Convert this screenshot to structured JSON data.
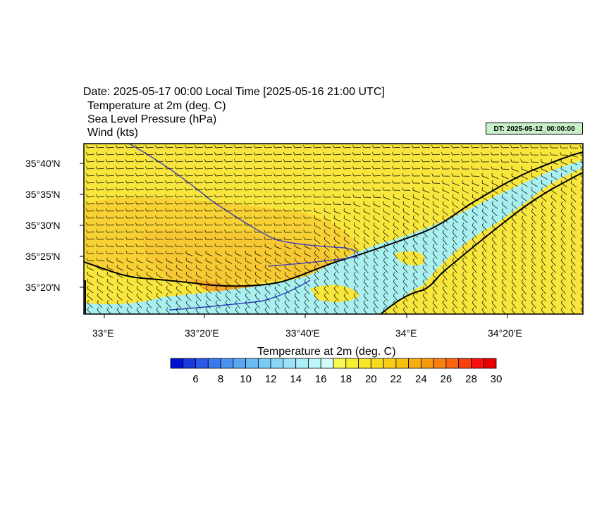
{
  "header": {
    "date_line": "Date: 2025-05-17  00:00 Local Time [2025-05-16  21:00 UTC]",
    "fields": [
      "Temperature at 2m   (deg. C)",
      "Sea Level Pressure   (hPa)",
      "Wind   (kts)"
    ],
    "dt_badge": "DT: 2025-05-12_00:00:00"
  },
  "map": {
    "region": "Eastern Mediterranean coastline",
    "lat_labels": [
      "35°40'N",
      "35°35'N",
      "35°30'N",
      "35°25'N",
      "35°20'N"
    ],
    "lon_labels": [
      "33°E",
      "33°20'E",
      "33°40'E",
      "34°E",
      "34°20'E"
    ],
    "colors": {
      "warm_land": "#f8e63c",
      "warmer": "#f8c832",
      "hot": "#f5aa28",
      "sea": "#a8f0f0",
      "coast": "#000000",
      "isobar": "#5050c8",
      "wind": "#000000"
    },
    "wind_direction": "westerly, turning north-westerly near the coast"
  },
  "colorbar": {
    "title": "Temperature at 2m  (deg. C)",
    "ticks": [
      "6",
      "8",
      "10",
      "12",
      "14",
      "16",
      "18",
      "20",
      "22",
      "24",
      "26",
      "28",
      "30"
    ],
    "colors": [
      "#0010d0",
      "#1a3ae0",
      "#2a5ae8",
      "#3a78ee",
      "#4a90f0",
      "#5aa8f2",
      "#6abcf4",
      "#7acaf6",
      "#8ad6f8",
      "#9ae2fa",
      "#aaeefa",
      "#bcf6fa",
      "#d0fcfc",
      "#f8f850",
      "#f8f030",
      "#f8e628",
      "#f8da20",
      "#f8cc18",
      "#f8be10",
      "#f8ae10",
      "#f89a10",
      "#f88010",
      "#f86410",
      "#f84010",
      "#f81010",
      "#e80000"
    ]
  }
}
